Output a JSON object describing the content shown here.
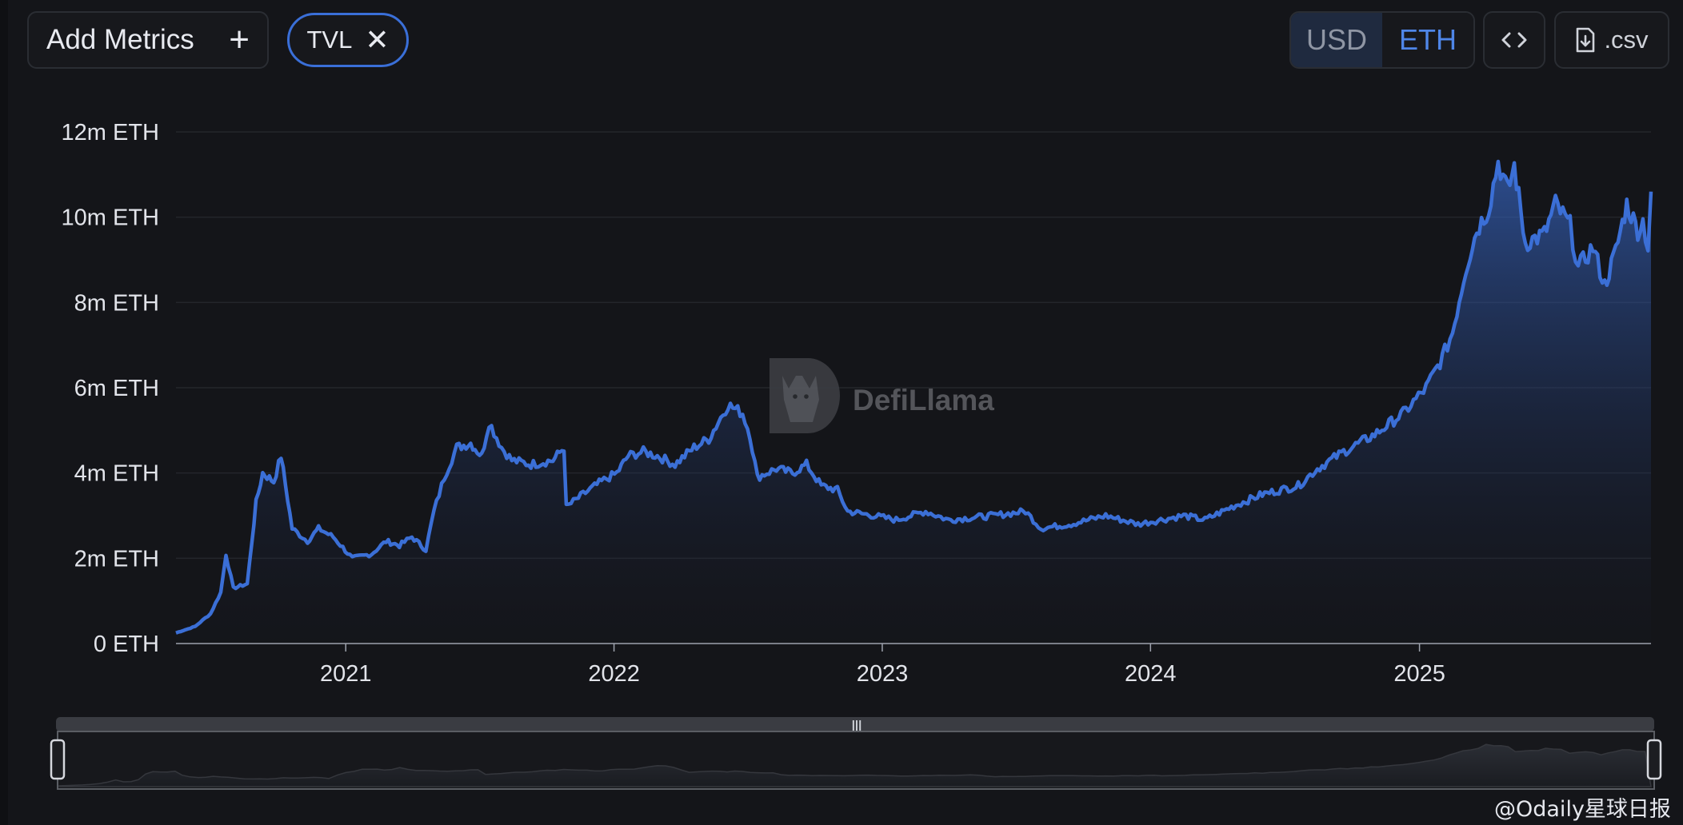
{
  "toolbar": {
    "add_metrics_label": "Add Metrics",
    "add_icon": "plus-icon",
    "metric_chip_label": "TVL",
    "chip_close_icon": "close-icon",
    "currency_options": [
      "USD",
      "ETH"
    ],
    "currency_selected": "ETH",
    "embed_icon": "code-icon",
    "csv_label": ".csv",
    "csv_icon": "download-file-icon"
  },
  "watermark": {
    "label": "DefiLlama",
    "icon": "llama-logo-icon"
  },
  "credit": "@Odaily星球日报",
  "colors": {
    "accent": "#3b6fd6",
    "background": "#141519",
    "grid": "#24262b",
    "text": "#e2e4ea"
  },
  "chart_data": {
    "type": "area",
    "title": "",
    "xlabel": "",
    "ylabel": "",
    "y_unit": "ETH",
    "ylim": [
      0,
      12000000
    ],
    "yticks": [
      "0 ETH",
      "2m ETH",
      "4m ETH",
      "6m ETH",
      "8m ETH",
      "10m ETH",
      "12m ETH"
    ],
    "xticks": [
      "2021",
      "2022",
      "2023",
      "2024",
      "2025"
    ],
    "grid": "horizontal",
    "series": [
      {
        "values": [
          [
            "2020-05-15",
            250000
          ],
          [
            "2020-06-10",
            400000
          ],
          [
            "2020-07-01",
            700000
          ],
          [
            "2020-07-15",
            1200000
          ],
          [
            "2020-07-22",
            2100000
          ],
          [
            "2020-08-01",
            1300000
          ],
          [
            "2020-08-20",
            1400000
          ],
          [
            "2020-09-01",
            3300000
          ],
          [
            "2020-09-10",
            4000000
          ],
          [
            "2020-09-25",
            3800000
          ],
          [
            "2020-10-05",
            4400000
          ],
          [
            "2020-10-20",
            2700000
          ],
          [
            "2020-11-10",
            2400000
          ],
          [
            "2020-11-25",
            2700000
          ],
          [
            "2020-12-15",
            2500000
          ],
          [
            "2021-01-10",
            2000000
          ],
          [
            "2021-02-05",
            2100000
          ],
          [
            "2021-02-25",
            2400000
          ],
          [
            "2021-03-15",
            2300000
          ],
          [
            "2021-04-01",
            2500000
          ],
          [
            "2021-04-20",
            2200000
          ],
          [
            "2021-05-01",
            3100000
          ],
          [
            "2021-05-15",
            3900000
          ],
          [
            "2021-06-01",
            4600000
          ],
          [
            "2021-06-20",
            4700000
          ],
          [
            "2021-07-05",
            4400000
          ],
          [
            "2021-07-15",
            5200000
          ],
          [
            "2021-08-01",
            4600000
          ],
          [
            "2021-08-15",
            4300000
          ],
          [
            "2021-09-10",
            4200000
          ],
          [
            "2021-10-10",
            4300000
          ],
          [
            "2021-10-25",
            4600000
          ],
          [
            "2021-10-28",
            3200000
          ],
          [
            "2021-11-20",
            3500000
          ],
          [
            "2021-12-15",
            3800000
          ],
          [
            "2022-01-05",
            4000000
          ],
          [
            "2022-01-20",
            4400000
          ],
          [
            "2022-02-10",
            4500000
          ],
          [
            "2022-03-01",
            4400000
          ],
          [
            "2022-03-25",
            4200000
          ],
          [
            "2022-04-20",
            4600000
          ],
          [
            "2022-05-10",
            4800000
          ],
          [
            "2022-06-05",
            5600000
          ],
          [
            "2022-06-25",
            5400000
          ],
          [
            "2022-07-05",
            4900000
          ],
          [
            "2022-07-15",
            3900000
          ],
          [
            "2022-08-10",
            4100000
          ],
          [
            "2022-09-01",
            4000000
          ],
          [
            "2022-09-20",
            4200000
          ],
          [
            "2022-10-10",
            3700000
          ],
          [
            "2022-11-01",
            3600000
          ],
          [
            "2022-11-15",
            3100000
          ],
          [
            "2022-12-20",
            3000000
          ],
          [
            "2023-01-20",
            2900000
          ],
          [
            "2023-03-01",
            3100000
          ],
          [
            "2023-04-01",
            2900000
          ],
          [
            "2023-06-01",
            3000000
          ],
          [
            "2023-07-15",
            3100000
          ],
          [
            "2023-08-05",
            2700000
          ],
          [
            "2023-09-15",
            2800000
          ],
          [
            "2023-11-01",
            3000000
          ],
          [
            "2023-12-15",
            2800000
          ],
          [
            "2024-01-15",
            2900000
          ],
          [
            "2024-02-15",
            3000000
          ],
          [
            "2024-03-15",
            2900000
          ],
          [
            "2024-04-20",
            3200000
          ],
          [
            "2024-06-01",
            3500000
          ],
          [
            "2024-07-20",
            3700000
          ],
          [
            "2024-08-15",
            4100000
          ],
          [
            "2024-09-20",
            4500000
          ],
          [
            "2024-11-01",
            4900000
          ],
          [
            "2024-12-10",
            5400000
          ],
          [
            "2025-01-10",
            6000000
          ],
          [
            "2025-02-01",
            6700000
          ],
          [
            "2025-02-15",
            7300000
          ],
          [
            "2025-03-05",
            8800000
          ],
          [
            "2025-03-20",
            9700000
          ],
          [
            "2025-04-05",
            10200000
          ],
          [
            "2025-04-18",
            11300000
          ],
          [
            "2025-05-01",
            10600000
          ],
          [
            "2025-05-10",
            11200000
          ],
          [
            "2025-05-25",
            9400000
          ],
          [
            "2025-06-20",
            9600000
          ],
          [
            "2025-07-05",
            10300000
          ],
          [
            "2025-07-25",
            9800000
          ],
          [
            "2025-08-05",
            8800000
          ],
          [
            "2025-08-25",
            9300000
          ],
          [
            "2025-09-10",
            8400000
          ],
          [
            "2025-09-25",
            9200000
          ],
          [
            "2025-10-10",
            10300000
          ],
          [
            "2025-10-25",
            9700000
          ],
          [
            "2025-11-01",
            9900000
          ],
          [
            "2025-11-08",
            9300000
          ],
          [
            "2025-11-12",
            10600000
          ]
        ]
      }
    ]
  }
}
